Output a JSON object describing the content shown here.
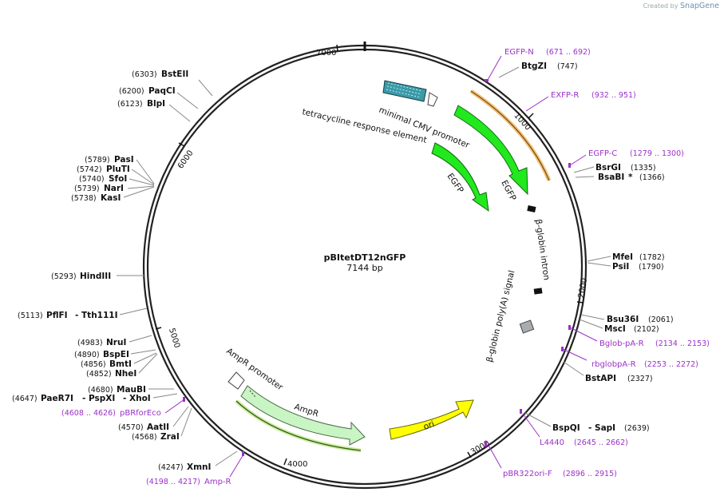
{
  "credit": {
    "prefix": "Created by",
    "brand": "SnapGene"
  },
  "plasmid": {
    "name": "pBItetDT12nGFP",
    "length": "7144 bp"
  },
  "ticks": [
    {
      "label": "1000"
    },
    {
      "label": "2000"
    },
    {
      "label": "3000"
    },
    {
      "label": "4000"
    },
    {
      "label": "5000"
    },
    {
      "label": "6000"
    },
    {
      "label": "7000"
    }
  ],
  "features": {
    "tre": "tetracycline response element",
    "cmv": "minimal CMV promoter",
    "egfp1": "EGFP",
    "egfp2": "EGFP",
    "intron": "β-globin intron",
    "polya": "β-globin poly(A) signal",
    "ampr_promoter": "AmpR promoter",
    "ampr": "AmpR",
    "ori": "ori"
  },
  "enzymes_right": [
    {
      "name": "BtgZI",
      "pos": "(747)"
    },
    {
      "name": "BsrGI",
      "pos": "(1335)"
    },
    {
      "name": "BsaBI",
      "star": "*",
      "pos": "(1366)"
    },
    {
      "name": "MfeI",
      "pos": "(1782)"
    },
    {
      "name": "PsiI",
      "pos": "(1790)"
    },
    {
      "name": "Bsu36I",
      "pos": "(2061)"
    },
    {
      "name": "MscI",
      "pos": "(2102)"
    },
    {
      "name": "BstAPI",
      "pos": "(2327)"
    },
    {
      "name": "BspQI",
      "sep": "- SapI",
      "pos": "(2639)"
    }
  ],
  "enzymes_left": [
    {
      "name": "BstEII",
      "pos": "(6303)"
    },
    {
      "name": "PaqCI",
      "pos": "(6200)"
    },
    {
      "name": "BlpI",
      "pos": "(6123)"
    },
    {
      "name": "PasI",
      "pos": "(5789)"
    },
    {
      "name": "PluTI",
      "pos": "(5742)"
    },
    {
      "name": "SfoI",
      "pos": "(5740)"
    },
    {
      "name": "NarI",
      "pos": "(5739)"
    },
    {
      "name": "KasI",
      "pos": "(5738)"
    },
    {
      "name": "HindIII",
      "pos": "(5293)"
    },
    {
      "name": "PflFI",
      "sep": "- Tth111I",
      "pos": "(5113)"
    },
    {
      "name": "NruI",
      "pos": "(4983)"
    },
    {
      "name": "BspEI",
      "pos": "(4890)"
    },
    {
      "name": "BmtI",
      "pos": "(4856)"
    },
    {
      "name": "NheI",
      "pos": "(4852)"
    },
    {
      "name": "MauBI",
      "pos": "(4680)"
    },
    {
      "name": "PaeR7I",
      "sep": "- PspXI",
      "sep2": "- XhoI",
      "pos": "(4647)"
    },
    {
      "name": "AatII",
      "pos": "(4570)"
    },
    {
      "name": "ZraI",
      "pos": "(4568)"
    },
    {
      "name": "XmnI",
      "pos": "(4247)"
    }
  ],
  "primers": [
    {
      "name": "EGFP-N",
      "pos": "(671 .. 692)"
    },
    {
      "name": "EXFP-R",
      "pos": "(932 .. 951)"
    },
    {
      "name": "EGFP-C",
      "pos": "(1279 .. 1300)"
    },
    {
      "name": "Bglob-pA-R",
      "pos": "(2134 .. 2153)"
    },
    {
      "name": "rbglobpA-R",
      "pos": "(2253 .. 2272)"
    },
    {
      "name": "L4440",
      "pos": "(2645 .. 2662)"
    },
    {
      "name": "pBR322ori-F",
      "pos": "(2896 .. 2915)"
    },
    {
      "name": "Amp-R",
      "pos": "(4198 .. 4217)"
    },
    {
      "name": "pBRforEco",
      "pos": "(4608 .. 4626)"
    }
  ],
  "colors": {
    "egfp": "#22e81e",
    "ampr": "#c9f5c4",
    "ori": "#ffff00",
    "primer": "#9b30c8",
    "tre": "#3a9aa8",
    "polya": "#a9adb0"
  }
}
